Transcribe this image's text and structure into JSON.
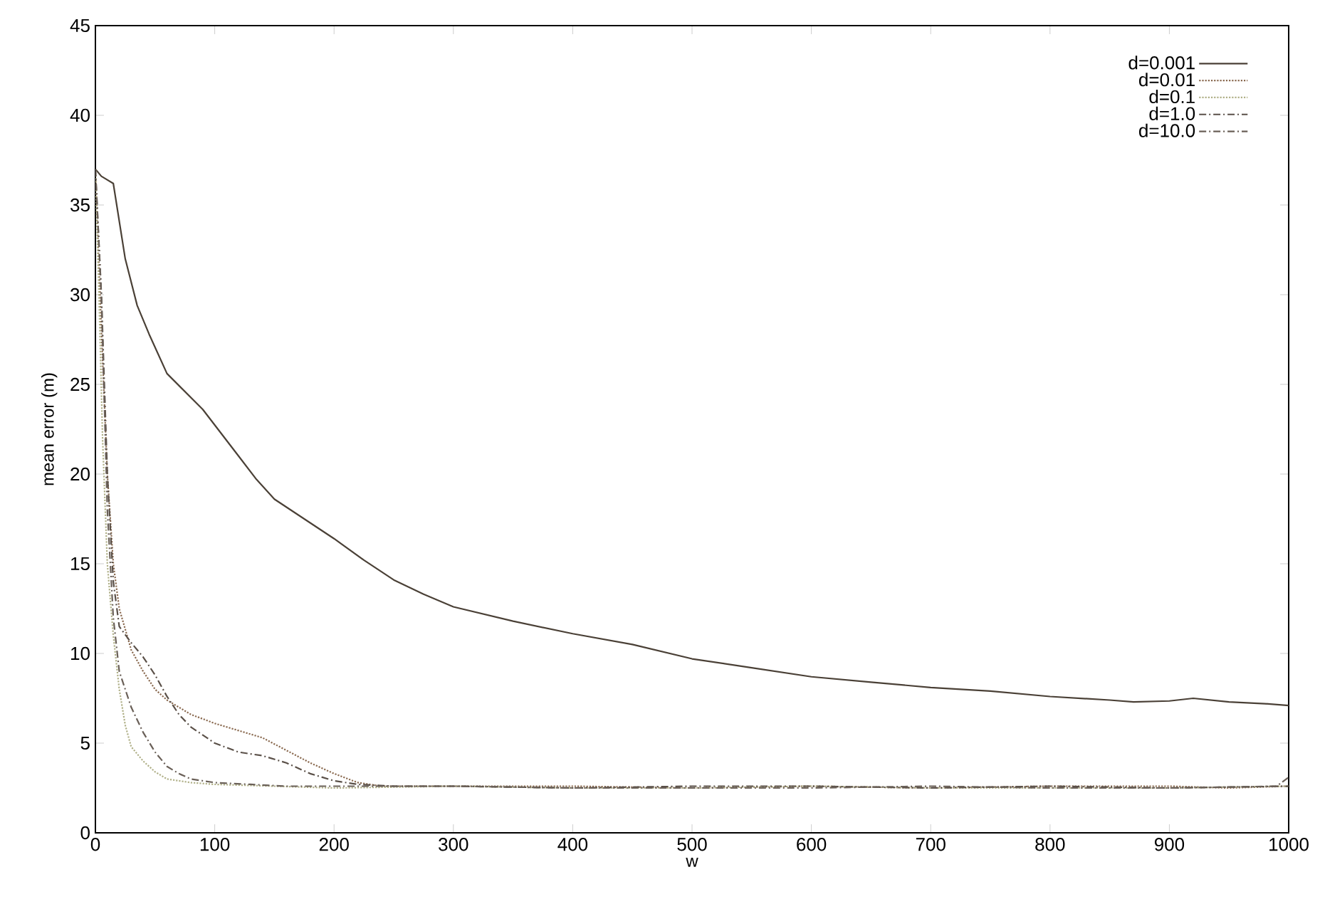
{
  "chart_data": {
    "type": "line",
    "xlabel": "w",
    "ylabel": "mean error (m)",
    "xlim": [
      0,
      1000
    ],
    "ylim": [
      0,
      45
    ],
    "xticks": [
      0,
      100,
      200,
      300,
      400,
      500,
      600,
      700,
      800,
      900,
      1000
    ],
    "yticks": [
      0,
      5,
      10,
      15,
      20,
      25,
      30,
      35,
      40,
      45
    ],
    "legend": "top right",
    "marker": "none",
    "series": [
      {
        "name": "d=0.001",
        "color": "#4a4036",
        "line_style": "solid",
        "x": [
          0,
          5,
          15,
          25,
          35,
          45,
          60,
          75,
          90,
          105,
          120,
          135,
          150,
          175,
          200,
          225,
          250,
          275,
          300,
          350,
          400,
          450,
          500,
          550,
          600,
          650,
          700,
          750,
          800,
          850,
          870,
          900,
          920,
          950,
          980,
          1000
        ],
        "values": [
          37,
          36.6,
          36.2,
          32,
          29.4,
          27.8,
          25.6,
          24.6,
          23.6,
          22.3,
          21,
          19.7,
          18.6,
          17.5,
          16.4,
          15.2,
          14.1,
          13.3,
          12.6,
          11.8,
          11.1,
          10.5,
          9.7,
          9.2,
          8.7,
          8.4,
          8.1,
          7.9,
          7.6,
          7.4,
          7.3,
          7.35,
          7.5,
          7.3,
          7.2,
          7.1
        ]
      },
      {
        "name": "d=0.01",
        "color": "#8a6a50",
        "line_style": "dotted",
        "x": [
          0,
          5,
          10,
          15,
          20,
          30,
          40,
          50,
          60,
          80,
          100,
          120,
          140,
          160,
          180,
          200,
          220,
          240,
          300,
          400,
          500,
          600,
          700,
          800,
          900,
          950,
          1000
        ],
        "values": [
          37,
          28,
          20,
          15,
          12.5,
          10.2,
          9,
          8,
          7.4,
          6.6,
          6.1,
          5.7,
          5.3,
          4.6,
          3.9,
          3.3,
          2.8,
          2.6,
          2.6,
          2.6,
          2.5,
          2.6,
          2.5,
          2.6,
          2.6,
          2.5,
          2.6
        ]
      },
      {
        "name": "d=0.1",
        "color": "#b0b088",
        "line_style": "dotted",
        "x": [
          0,
          3,
          6,
          10,
          15,
          20,
          25,
          30,
          40,
          50,
          60,
          80,
          100,
          150,
          200,
          300,
          400,
          500,
          600,
          700,
          800,
          900,
          1000
        ],
        "values": [
          37,
          30,
          22,
          15,
          11,
          8,
          6,
          4.8,
          4,
          3.4,
          3.0,
          2.8,
          2.7,
          2.6,
          2.5,
          2.6,
          2.5,
          2.5,
          2.6,
          2.5,
          2.5,
          2.5,
          2.6
        ]
      },
      {
        "name": "d=1.0",
        "color": "#5a5048",
        "line_style": "dashed",
        "x": [
          0,
          5,
          10,
          15,
          20,
          30,
          40,
          50,
          60,
          70,
          80,
          100,
          120,
          140,
          160,
          180,
          200,
          220,
          250,
          300,
          400,
          500,
          600,
          700,
          800,
          900,
          1000
        ],
        "values": [
          37,
          30,
          20,
          14,
          11.5,
          10.6,
          9.8,
          8.8,
          7.6,
          6.6,
          5.9,
          5,
          4.5,
          4.3,
          3.9,
          3.3,
          2.9,
          2.7,
          2.6,
          2.6,
          2.5,
          2.6,
          2.6,
          2.5,
          2.6,
          2.5,
          2.6
        ]
      },
      {
        "name": "d=10.0",
        "color": "#6a6058",
        "line_style": "dashed",
        "x": [
          0,
          5,
          10,
          15,
          20,
          30,
          40,
          50,
          60,
          70,
          80,
          100,
          130,
          160,
          200,
          300,
          400,
          500,
          600,
          700,
          800,
          900,
          990,
          1000
        ],
        "values": [
          37,
          30,
          18,
          12,
          9,
          7,
          5.6,
          4.5,
          3.7,
          3.3,
          3.0,
          2.8,
          2.7,
          2.6,
          2.6,
          2.6,
          2.5,
          2.5,
          2.5,
          2.6,
          2.5,
          2.5,
          2.6,
          3.1
        ]
      }
    ]
  }
}
